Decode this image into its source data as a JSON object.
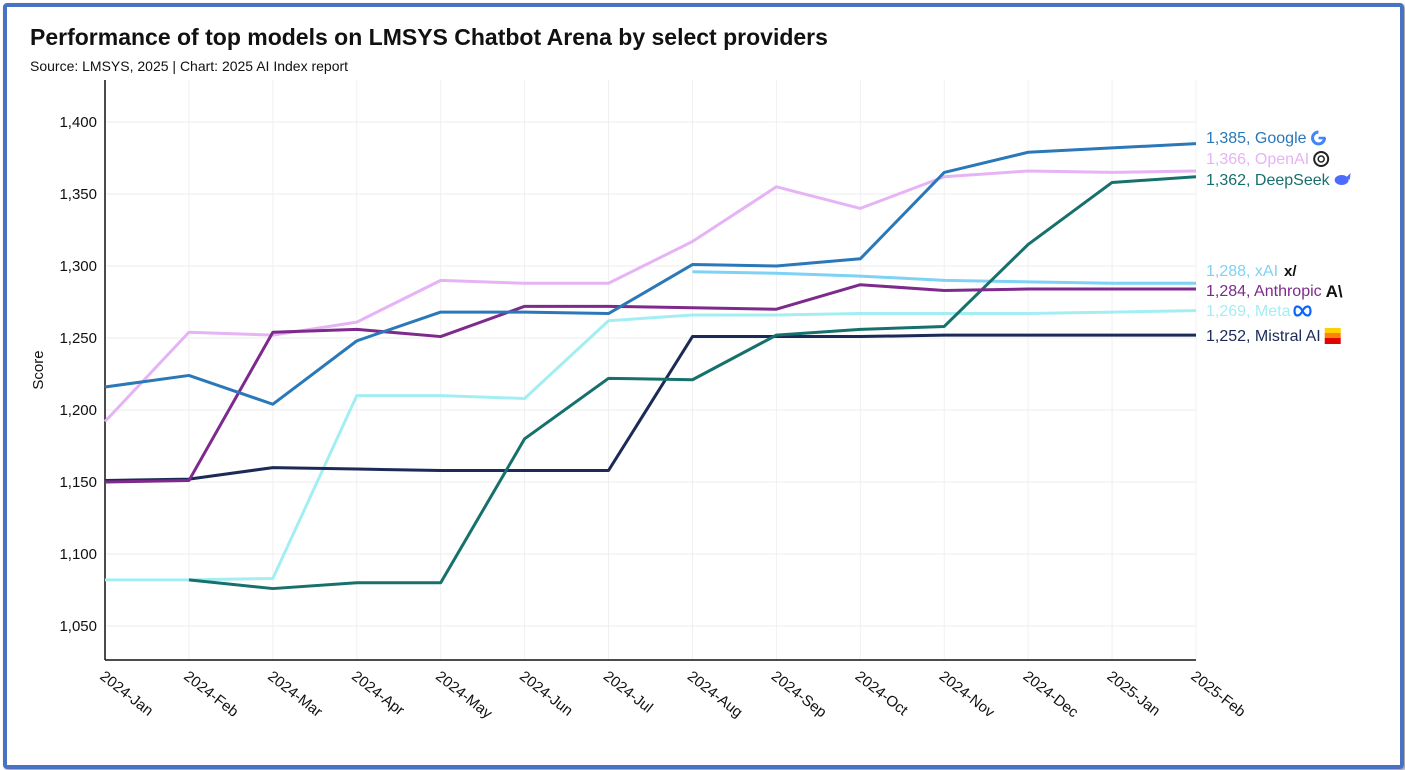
{
  "chart_data": {
    "type": "line",
    "title": "Performance of top models on LMSYS Chatbot Arena by select providers",
    "subtitle": "Source: LMSYS, 2025 | Chart: 2025 AI Index report",
    "xlabel": "",
    "ylabel": "Score",
    "ylim": [
      1025,
      1430
    ],
    "yticks": [
      1050,
      1100,
      1150,
      1200,
      1250,
      1300,
      1350,
      1400
    ],
    "ytick_labels": [
      "1,050",
      "1,100",
      "1,150",
      "1,200",
      "1,250",
      "1,300",
      "1,350",
      "1,400"
    ],
    "grid": true,
    "categories": [
      "2024-Jan",
      "2024-Feb",
      "2024-Mar",
      "2024-Apr",
      "2024-May",
      "2024-Jun",
      "2024-Jul",
      "2024-Aug",
      "2024-Sep",
      "2024-Oct",
      "2024-Nov",
      "2024-Dec",
      "2025-Jan",
      "2025-Feb"
    ],
    "series": [
      {
        "name": "Google",
        "color": "#2a78b8",
        "end_label": "1,385, Google",
        "icon": "google-icon",
        "values": [
          1216,
          1224,
          1204,
          1248,
          1268,
          1268,
          1267,
          1301,
          1300,
          1305,
          1365,
          1379,
          1382,
          1385
        ]
      },
      {
        "name": "OpenAI",
        "color": "#e6b3f5",
        "end_label": "1,366, OpenAI",
        "icon": "openai-icon",
        "values": [
          1192,
          1254,
          1252,
          1261,
          1290,
          1288,
          1288,
          1317,
          1355,
          1340,
          1362,
          1366,
          1365,
          1366
        ]
      },
      {
        "name": "DeepSeek",
        "color": "#16706c",
        "end_label": "1,362, DeepSeek",
        "icon": "deepseek-icon",
        "values": [
          null,
          1082,
          1076,
          1080,
          1080,
          1180,
          1222,
          1221,
          1252,
          1256,
          1258,
          1315,
          1358,
          1362
        ]
      },
      {
        "name": "xAI",
        "color": "#7ed2f5",
        "end_label": "1,288, xAI",
        "icon": "xai-icon",
        "values": [
          null,
          null,
          null,
          null,
          null,
          null,
          null,
          1296,
          1295,
          1293,
          1290,
          1289,
          1288,
          1288
        ]
      },
      {
        "name": "Anthropic",
        "color": "#7d2a8c",
        "end_label": "1,284, Anthropic",
        "icon": "anthropic-icon",
        "values": [
          1150,
          1151,
          1254,
          1256,
          1251,
          1272,
          1272,
          1271,
          1270,
          1287,
          1283,
          1284,
          1284,
          1284
        ]
      },
      {
        "name": "Meta",
        "color": "#a3eef3",
        "end_label": "1,269, Meta",
        "icon": "meta-icon",
        "values": [
          1082,
          1082,
          1083,
          1210,
          1210,
          1208,
          1262,
          1266,
          1266,
          1267,
          1267,
          1267,
          1268,
          1269
        ]
      },
      {
        "name": "Mistral AI",
        "color": "#1b2a56",
        "end_label": "1,252, Mistral AI",
        "icon": "mistral-icon",
        "values": [
          1151,
          1152,
          1160,
          1159,
          1158,
          1158,
          1158,
          1251,
          1251,
          1251,
          1252,
          1252,
          1252,
          1252
        ]
      }
    ]
  }
}
